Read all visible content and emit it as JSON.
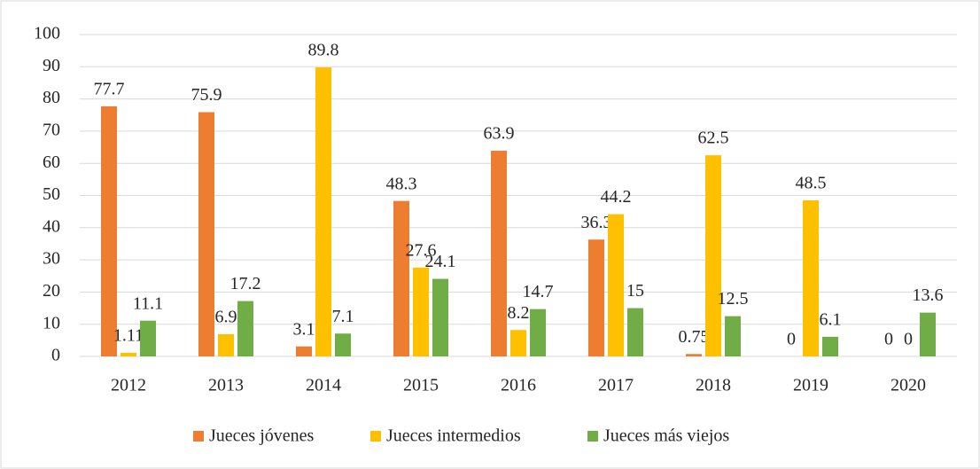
{
  "chart_data": {
    "type": "bar",
    "categories": [
      "2012",
      "2013",
      "2014",
      "2015",
      "2016",
      "2017",
      "2018",
      "2019",
      "2020"
    ],
    "series": [
      {
        "name": "Jueces jóvenes",
        "color": "#ed7d31",
        "values": [
          77.7,
          75.9,
          3.1,
          48.3,
          63.9,
          36.3,
          0.75,
          0,
          0
        ]
      },
      {
        "name": "Jueces intermedios",
        "color": "#ffc000",
        "values": [
          1.11,
          6.9,
          89.8,
          27.6,
          8.2,
          44.2,
          62.5,
          48.5,
          0
        ]
      },
      {
        "name": "Jueces más viejos",
        "color": "#70ad47",
        "values": [
          11.1,
          17.2,
          7.1,
          24.1,
          14.7,
          15,
          12.5,
          6.1,
          13.6
        ]
      }
    ],
    "ylim": [
      0,
      100
    ],
    "yticks": [
      0,
      10,
      20,
      30,
      40,
      50,
      60,
      70,
      80,
      90,
      100
    ],
    "grid": true,
    "legend": "bottom"
  }
}
